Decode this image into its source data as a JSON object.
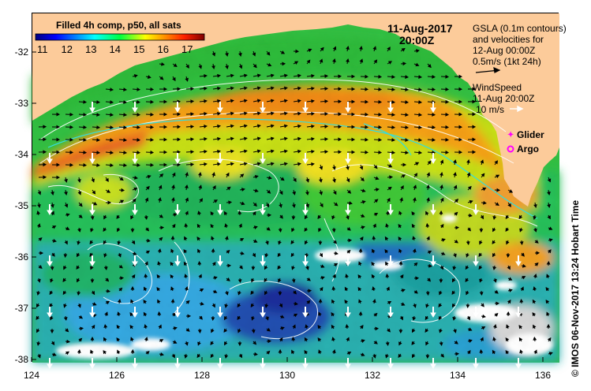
{
  "colorbar": {
    "title": "Filled 4h comp, p50, all sats",
    "ticks": [
      "11",
      "12",
      "13",
      "14",
      "15",
      "16",
      "17"
    ]
  },
  "timestamp": {
    "date": "11-Aug-2017",
    "time": "20:00Z"
  },
  "gsla_legend": {
    "line1": "GSLA (0.1m contours)",
    "line2": "and velocities for",
    "line3": "12-Aug 00:00Z",
    "line4": "0.5m/s (1kt 24h)"
  },
  "wind_legend": {
    "line1": "WindSpeed",
    "line2": "11-Aug 20:00Z",
    "line3": "10 m/s"
  },
  "markers": {
    "glider": "Glider",
    "argo": "Argo"
  },
  "axes": {
    "y_ticks": [
      "-32",
      "-33",
      "-34",
      "-35",
      "-36",
      "-37",
      "-38"
    ],
    "x_ticks": [
      "124",
      "126",
      "128",
      "130",
      "132",
      "134",
      "136"
    ]
  },
  "credit": "© IMOS 06-Nov-2017 13:24 Hobart Time",
  "colors": {
    "land": "#fccb9a",
    "arrow": "#000000",
    "wind_arrow": "#ffffff",
    "contour": "#ffffff",
    "glider": "#ff00ff",
    "argo": "#ff00ff"
  }
}
